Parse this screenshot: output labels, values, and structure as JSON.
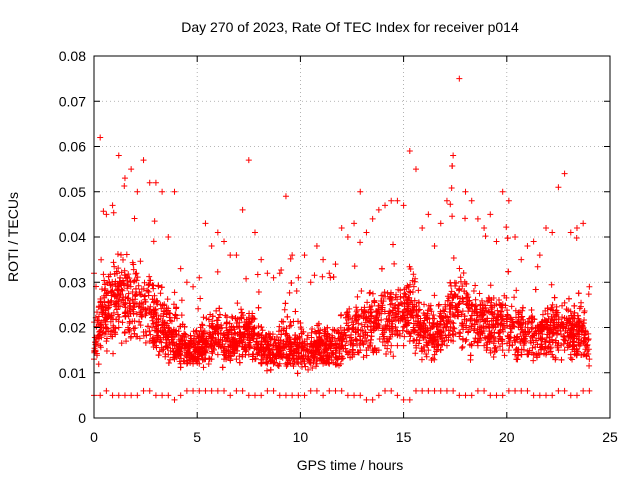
{
  "chart_data": {
    "type": "scatter",
    "title": "Day 270 of 2023, Rate Of TEC Index for receiver p014",
    "xlabel": "GPS time / hours",
    "ylabel": "ROTI / TECUs",
    "xlim": [
      0,
      25
    ],
    "ylim": [
      0,
      0.08
    ],
    "x_ticks": [
      0,
      5,
      10,
      15,
      20,
      25
    ],
    "x_tick_labels": [
      "0",
      "5",
      "10",
      "15",
      "20",
      "25"
    ],
    "y_ticks": [
      0,
      0.01,
      0.02,
      0.03,
      0.04,
      0.05,
      0.06,
      0.07,
      0.08
    ],
    "y_tick_labels": [
      "0",
      "0.01",
      "0.02",
      "0.03",
      "0.04",
      "0.05",
      "0.06",
      "0.07",
      "0.08"
    ],
    "grid": true,
    "marker": "+",
    "series": [
      {
        "name": "ROTI",
        "color": "#ff0000",
        "x": [
          0.0,
          0.3,
          0.6,
          0.9,
          1.2,
          1.5,
          1.8,
          2.1,
          2.4,
          2.7,
          3.0,
          3.3,
          3.6,
          3.9,
          4.2,
          4.5,
          4.8,
          5.1,
          5.4,
          5.7,
          6.0,
          6.3,
          6.6,
          6.9,
          7.2,
          7.5,
          7.8,
          8.1,
          8.4,
          8.7,
          9.0,
          9.3,
          9.6,
          9.9,
          10.2,
          10.5,
          10.8,
          11.1,
          11.4,
          11.7,
          12.0,
          12.3,
          12.6,
          12.9,
          13.2,
          13.5,
          13.8,
          14.1,
          14.4,
          14.7,
          15.0,
          15.3,
          15.6,
          15.9,
          16.2,
          16.5,
          16.8,
          17.1,
          17.4,
          17.7,
          18.0,
          18.3,
          18.6,
          18.9,
          19.2,
          19.5,
          19.8,
          20.1,
          20.4,
          20.7,
          21.0,
          21.3,
          21.6,
          21.9,
          22.2,
          22.5,
          22.8,
          23.1,
          23.4,
          23.7,
          24.0
        ],
        "y_low": [
          0.005,
          0.005,
          0.006,
          0.005,
          0.005,
          0.005,
          0.005,
          0.005,
          0.006,
          0.006,
          0.005,
          0.005,
          0.005,
          0.004,
          0.005,
          0.006,
          0.006,
          0.006,
          0.006,
          0.006,
          0.006,
          0.006,
          0.005,
          0.006,
          0.006,
          0.005,
          0.005,
          0.005,
          0.006,
          0.006,
          0.005,
          0.005,
          0.005,
          0.005,
          0.005,
          0.006,
          0.006,
          0.005,
          0.006,
          0.006,
          0.006,
          0.005,
          0.005,
          0.005,
          0.004,
          0.004,
          0.005,
          0.006,
          0.006,
          0.005,
          0.004,
          0.004,
          0.006,
          0.006,
          0.006,
          0.006,
          0.006,
          0.006,
          0.006,
          0.005,
          0.005,
          0.005,
          0.006,
          0.006,
          0.005,
          0.005,
          0.005,
          0.006,
          0.006,
          0.006,
          0.006,
          0.005,
          0.005,
          0.005,
          0.005,
          0.006,
          0.006,
          0.005,
          0.005,
          0.006,
          0.006
        ],
        "y_high": [
          0.032,
          0.062,
          0.045,
          0.047,
          0.058,
          0.053,
          0.055,
          0.05,
          0.057,
          0.052,
          0.052,
          0.05,
          0.04,
          0.05,
          0.033,
          0.03,
          0.029,
          0.031,
          0.043,
          0.038,
          0.041,
          0.039,
          0.036,
          0.036,
          0.046,
          0.057,
          0.041,
          0.035,
          0.032,
          0.031,
          0.032,
          0.049,
          0.036,
          0.031,
          0.036,
          0.03,
          0.038,
          0.035,
          0.032,
          0.034,
          0.042,
          0.04,
          0.043,
          0.05,
          0.041,
          0.044,
          0.046,
          0.047,
          0.048,
          0.048,
          0.047,
          0.059,
          0.055,
          0.042,
          0.045,
          0.038,
          0.043,
          0.048,
          0.058,
          0.075,
          0.05,
          0.048,
          0.044,
          0.042,
          0.045,
          0.039,
          0.05,
          0.048,
          0.04,
          0.035,
          0.038,
          0.039,
          0.036,
          0.042,
          0.041,
          0.051,
          0.054,
          0.041,
          0.042,
          0.043,
          0.029
        ],
        "y_median": [
          0.013,
          0.016,
          0.017,
          0.018,
          0.02,
          0.019,
          0.018,
          0.018,
          0.019,
          0.017,
          0.016,
          0.015,
          0.014,
          0.013,
          0.012,
          0.012,
          0.012,
          0.012,
          0.013,
          0.013,
          0.014,
          0.013,
          0.013,
          0.013,
          0.014,
          0.014,
          0.013,
          0.012,
          0.012,
          0.012,
          0.012,
          0.012,
          0.012,
          0.012,
          0.012,
          0.012,
          0.012,
          0.012,
          0.012,
          0.012,
          0.013,
          0.014,
          0.014,
          0.015,
          0.015,
          0.015,
          0.015,
          0.016,
          0.016,
          0.016,
          0.016,
          0.017,
          0.016,
          0.015,
          0.015,
          0.014,
          0.015,
          0.016,
          0.017,
          0.018,
          0.017,
          0.016,
          0.016,
          0.016,
          0.015,
          0.015,
          0.015,
          0.015,
          0.014,
          0.014,
          0.014,
          0.014,
          0.014,
          0.014,
          0.014,
          0.015,
          0.015,
          0.014,
          0.014,
          0.014,
          0.013
        ]
      }
    ]
  }
}
